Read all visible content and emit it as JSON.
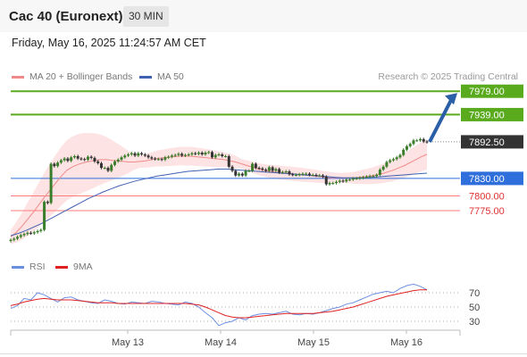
{
  "header": {
    "title": "Cac 40 (Euronext)",
    "timeframe": "30 MIN"
  },
  "timestamp": "Friday, May 16, 2025 11:24:57 AM CET",
  "legend": {
    "ma20_label": "MA 20 + Bollinger Bands",
    "ma50_label": "MA 50",
    "credit": "Research © 2025 Trading Central"
  },
  "rsi_legend": {
    "rsi_label": "RSI",
    "ma_label": "9MA"
  },
  "colors": {
    "resistance": "#5aaa1e",
    "support": "#ff7b7b",
    "pivot": "#2f6fdc",
    "current": "#333333",
    "ma20": "#f08a8a",
    "ma50": "#4060b0",
    "bollinger_fill": "#fde3e3",
    "candle_up": "#3a7d2a",
    "candle_down": "#333333",
    "arrow": "#2a5fa8",
    "rsi": "#6b8fe0",
    "rsi_ma": "#e02020"
  },
  "chart_data": [
    {
      "type": "candlestick",
      "title": "Cac 40 (Euronext)",
      "timeframe": "30 MIN",
      "x_labels": [
        "May 13",
        "May 14",
        "May 15",
        "May 16"
      ],
      "ylim": [
        7720,
        7990
      ],
      "levels": [
        {
          "value": 7979.0,
          "label": "7979.00",
          "kind": "resistance"
        },
        {
          "value": 7939.0,
          "label": "7939.00",
          "kind": "resistance"
        },
        {
          "value": 7892.5,
          "label": "7892.50",
          "kind": "current"
        },
        {
          "value": 7830.0,
          "label": "7830.00",
          "kind": "pivot"
        },
        {
          "value": 7800.0,
          "label": "7800.00",
          "kind": "support"
        },
        {
          "value": 7775.0,
          "label": "7775.00",
          "kind": "support"
        }
      ],
      "close": [
        7725,
        7727,
        7730,
        7733,
        7735,
        7737,
        7736,
        7738,
        7740,
        7742,
        7790,
        7788,
        7855,
        7851,
        7857,
        7861,
        7864,
        7860,
        7866,
        7868,
        7864,
        7863,
        7862,
        7867,
        7865,
        7859,
        7856,
        7848,
        7848,
        7843,
        7853,
        7859,
        7862,
        7866,
        7869,
        7871,
        7873,
        7869,
        7873,
        7871,
        7869,
        7866,
        7864,
        7863,
        7863,
        7862,
        7866,
        7867,
        7869,
        7870,
        7872,
        7869,
        7870,
        7871,
        7873,
        7872,
        7874,
        7871,
        7874,
        7875,
        7866,
        7870,
        7871,
        7868,
        7868,
        7850,
        7843,
        7835,
        7838,
        7835,
        7843,
        7843,
        7855,
        7848,
        7847,
        7845,
        7843,
        7849,
        7843,
        7846,
        7840,
        7841,
        7842,
        7837,
        7836,
        7836,
        7837,
        7838,
        7838,
        7836,
        7836,
        7835,
        7835,
        7833,
        7820,
        7822,
        7822,
        7824,
        7826,
        7825,
        7828,
        7828,
        7830,
        7830,
        7831,
        7832,
        7833,
        7834,
        7834,
        7836,
        7845,
        7850,
        7858,
        7861,
        7863,
        7866,
        7870,
        7879,
        7885,
        7889,
        7895,
        7895,
        7897,
        7893,
        7892
      ],
      "ma20": [
        7730,
        7738,
        7748,
        7760,
        7772,
        7785,
        7798,
        7810,
        7822,
        7834,
        7844,
        7850,
        7854,
        7857,
        7859,
        7861,
        7862,
        7862,
        7861,
        7860,
        7859,
        7858,
        7858,
        7859,
        7860,
        7862,
        7864,
        7865,
        7866,
        7867,
        7868,
        7868,
        7868,
        7867,
        7866,
        7865,
        7864,
        7863,
        7862,
        7860,
        7858,
        7855,
        7852,
        7849,
        7846,
        7844,
        7842,
        7841,
        7840,
        7839,
        7838,
        7837,
        7836,
        7835,
        7834,
        7833,
        7832,
        7831,
        7831,
        7831,
        7831,
        7831,
        7832,
        7833,
        7834,
        7836,
        7838,
        7841,
        7844,
        7848,
        7852,
        7857,
        7862,
        7867,
        7871
      ],
      "ma50": [
        7732,
        7736,
        7741,
        7747,
        7753,
        7760,
        7767,
        7774,
        7781,
        7788,
        7795,
        7801,
        7807,
        7812,
        7817,
        7821,
        7825,
        7828,
        7831,
        7834,
        7836,
        7838,
        7840,
        7842,
        7843,
        7844,
        7845,
        7846,
        7846,
        7845,
        7844,
        7843,
        7842,
        7841,
        7840,
        7839,
        7838,
        7837,
        7836,
        7835,
        7834,
        7833,
        7832,
        7831,
        7831,
        7831,
        7831,
        7832,
        7833,
        7834,
        7835,
        7836,
        7837,
        7838,
        7839
      ],
      "annotation": "forecast arrow from 7892.50 toward 7979.00"
    },
    {
      "type": "line",
      "title": "RSI",
      "series": [
        {
          "name": "RSI",
          "values": [
            48,
            52,
            62,
            60,
            70,
            67,
            62,
            57,
            63,
            64,
            60,
            58,
            56,
            55,
            60,
            58,
            55,
            54,
            57,
            56,
            55,
            58,
            57,
            55,
            54,
            53,
            57,
            55,
            50,
            42,
            35,
            24,
            28,
            30,
            35,
            32,
            38,
            40,
            41,
            40,
            42,
            44,
            40,
            39,
            41,
            40,
            42,
            45,
            48,
            50,
            54,
            56,
            60,
            64,
            68,
            70,
            72,
            70,
            76,
            80,
            82,
            79,
            74
          ]
        },
        {
          "name": "9MA",
          "values": [
            52,
            54,
            57,
            59,
            61,
            62,
            61,
            60,
            60,
            60,
            59,
            58,
            57,
            56,
            56,
            56,
            55,
            55,
            55,
            55,
            55,
            55,
            55,
            55,
            55,
            55,
            55,
            54,
            53,
            50,
            46,
            42,
            38,
            36,
            35,
            35,
            36,
            37,
            38,
            39,
            40,
            41,
            41,
            41,
            41,
            41,
            42,
            43,
            44,
            46,
            48,
            50,
            53,
            56,
            59,
            62,
            65,
            67,
            69,
            71,
            73,
            74,
            74
          ]
        }
      ],
      "y_ticks": [
        70,
        50,
        30
      ],
      "ylim": [
        20,
        95
      ]
    }
  ]
}
